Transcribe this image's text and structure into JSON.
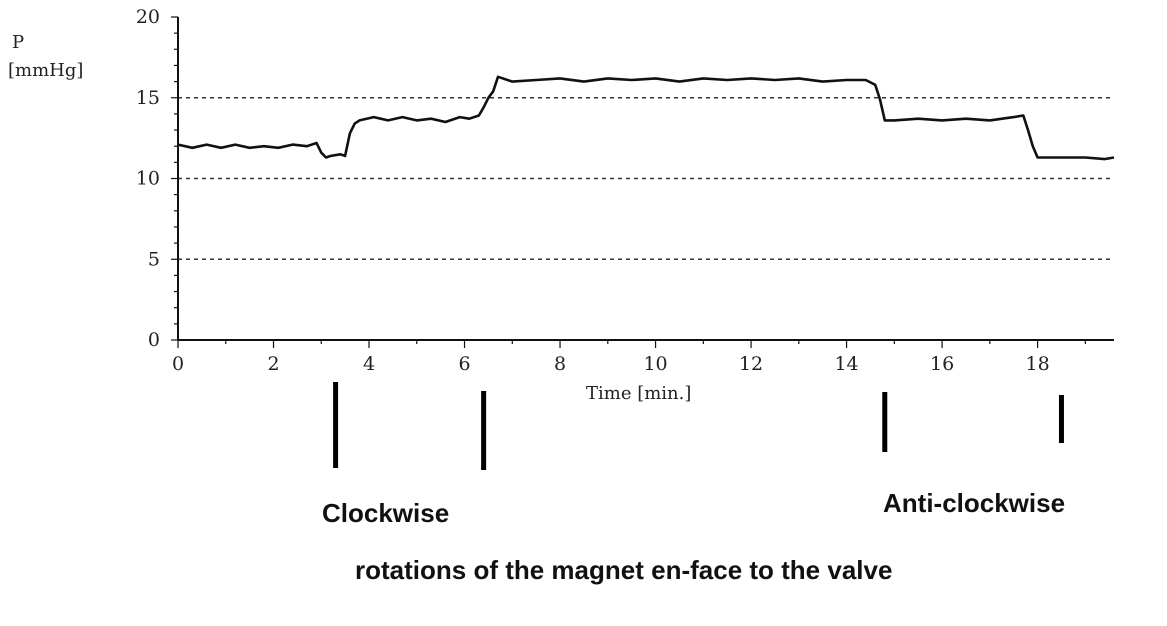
{
  "chart_data": {
    "type": "line",
    "ylabel": "P",
    "yunit": "[mmHg]",
    "xlabel": "Time  [min.]",
    "xlim": [
      0,
      19.6
    ],
    "ylim": [
      0,
      20
    ],
    "xticks": [
      0,
      2,
      4,
      6,
      8,
      10,
      12,
      14,
      16,
      18
    ],
    "yticks": [
      0,
      5,
      10,
      15,
      20
    ],
    "grid": {
      "dashed_y": [
        5,
        10,
        15
      ]
    },
    "series": [
      {
        "color": "#111111",
        "x": [
          0,
          0.3,
          0.6,
          0.9,
          1.2,
          1.5,
          1.8,
          2.1,
          2.4,
          2.7,
          2.9,
          3.0,
          3.1,
          3.2,
          3.4,
          3.5,
          3.6,
          3.7,
          3.8,
          4.1,
          4.4,
          4.7,
          5.0,
          5.3,
          5.6,
          5.9,
          6.1,
          6.3,
          6.4,
          6.5,
          6.6,
          6.7,
          7.0,
          7.5,
          8.0,
          8.5,
          9.0,
          9.5,
          10.0,
          10.5,
          11.0,
          11.5,
          12.0,
          12.5,
          13.0,
          13.5,
          14.0,
          14.4,
          14.6,
          14.7,
          14.8,
          15.0,
          15.5,
          16.0,
          16.5,
          17.0,
          17.5,
          17.7,
          17.8,
          17.9,
          18.0,
          18.5,
          19.0,
          19.4,
          19.6
        ],
        "y": [
          12.1,
          11.9,
          12.1,
          11.9,
          12.1,
          11.9,
          12.0,
          11.9,
          12.1,
          12.0,
          12.2,
          11.6,
          11.3,
          11.4,
          11.5,
          11.4,
          12.8,
          13.4,
          13.6,
          13.8,
          13.6,
          13.8,
          13.6,
          13.7,
          13.5,
          13.8,
          13.7,
          13.9,
          14.4,
          15.0,
          15.4,
          16.3,
          16.0,
          16.1,
          16.2,
          16.0,
          16.2,
          16.1,
          16.2,
          16.0,
          16.2,
          16.1,
          16.2,
          16.1,
          16.2,
          16.0,
          16.1,
          16.1,
          15.8,
          14.9,
          13.6,
          13.6,
          13.7,
          13.6,
          13.7,
          13.6,
          13.8,
          13.9,
          13.0,
          12.0,
          11.3,
          11.3,
          11.3,
          11.2,
          11.3
        ]
      }
    ],
    "markers_x": [
      3.3,
      6.4,
      14.8,
      18.5
    ],
    "annotations": {
      "clockwise": "Clockwise",
      "anticlockwise": "Anti-clockwise",
      "caption": "rotations of the magnet  en-face to the  valve"
    }
  }
}
